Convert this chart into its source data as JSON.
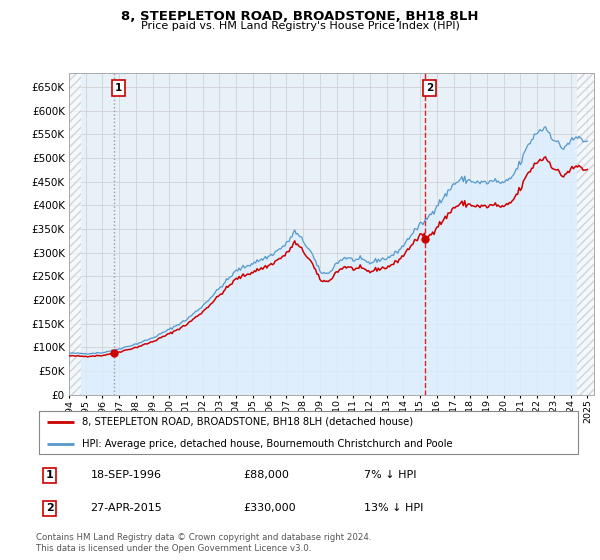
{
  "title": "8, STEEPLETON ROAD, BROADSTONE, BH18 8LH",
  "subtitle": "Price paid vs. HM Land Registry's House Price Index (HPI)",
  "legend_line1": "8, STEEPLETON ROAD, BROADSTONE, BH18 8LH (detached house)",
  "legend_line2": "HPI: Average price, detached house, Bournemouth Christchurch and Poole",
  "footnote": "Contains HM Land Registry data © Crown copyright and database right 2024.\nThis data is licensed under the Open Government Licence v3.0.",
  "sale1_date": "18-SEP-1996",
  "sale1_price": "£88,000",
  "sale1_hpi": "7% ↓ HPI",
  "sale2_date": "27-APR-2015",
  "sale2_price": "£330,000",
  "sale2_hpi": "13% ↓ HPI",
  "ylim": [
    0,
    680000
  ],
  "yticks": [
    0,
    50000,
    100000,
    150000,
    200000,
    250000,
    300000,
    350000,
    400000,
    450000,
    500000,
    550000,
    600000,
    650000
  ],
  "sale_color": "#cc0000",
  "hpi_line_color": "#5599cc",
  "hpi_fill_color": "#ddeeff",
  "sale1_vline_color": "#aaaaaa",
  "sale2_vline_color": "#dd2222",
  "marker_color": "#cc0000",
  "grid_color": "#cccccc",
  "bg_color": "#e8f0f8",
  "sale1_x": 1996.72,
  "sale2_x": 2015.32,
  "sale1_price_val": 88000,
  "sale2_price_val": 330000
}
